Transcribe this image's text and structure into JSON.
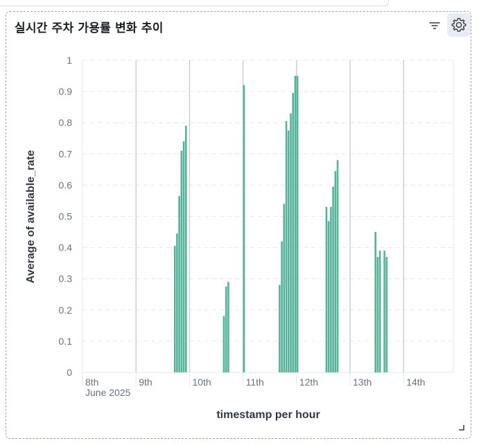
{
  "panel": {
    "title": "실시간 주차 가용률 변화 추이",
    "icons": [
      "filter-icon",
      "gear-icon",
      "resize-handle-icon"
    ]
  },
  "colors": {
    "bar": "#54b399",
    "grid": "#e4e7ec",
    "day_line": "#c5c9d0"
  },
  "chart_data": {
    "type": "bar",
    "title": "",
    "xlabel": "timestamp per hour",
    "ylabel": "Average of available_rate",
    "ylim": [
      0,
      1
    ],
    "yticks": [
      "0",
      "0.1",
      "0.2",
      "0.3",
      "0.4",
      "0.5",
      "0.6",
      "0.7",
      "0.8",
      "0.9",
      "1"
    ],
    "xticks": [
      {
        "label": "8th",
        "sublabel": "June 2025",
        "date": "2025-06-08"
      },
      {
        "label": "9th",
        "date": "2025-06-09"
      },
      {
        "label": "10th",
        "date": "2025-06-10"
      },
      {
        "label": "11th",
        "date": "2025-06-11"
      },
      {
        "label": "12th",
        "date": "2025-06-12"
      },
      {
        "label": "13th",
        "date": "2025-06-13"
      },
      {
        "label": "14th",
        "date": "2025-06-14"
      }
    ],
    "grid": true,
    "series": [
      {
        "values": [
          {
            "x": "2025-06-09 17:00",
            "y": 0.405
          },
          {
            "x": "2025-06-09 18:00",
            "y": 0.445
          },
          {
            "x": "2025-06-09 19:00",
            "y": 0.565
          },
          {
            "x": "2025-06-09 20:00",
            "y": 0.71
          },
          {
            "x": "2025-06-09 21:00",
            "y": 0.74
          },
          {
            "x": "2025-06-09 22:00",
            "y": 0.79
          },
          {
            "x": "2025-06-10 15:00",
            "y": 0.18
          },
          {
            "x": "2025-06-10 16:00",
            "y": 0.275
          },
          {
            "x": "2025-06-10 17:00",
            "y": 0.29
          },
          {
            "x": "2025-06-11 00:00",
            "y": 0.92
          },
          {
            "x": "2025-06-11 16:00",
            "y": 0.28
          },
          {
            "x": "2025-06-11 17:00",
            "y": 0.42
          },
          {
            "x": "2025-06-11 18:00",
            "y": 0.54
          },
          {
            "x": "2025-06-11 19:00",
            "y": 0.805
          },
          {
            "x": "2025-06-11 20:00",
            "y": 0.775
          },
          {
            "x": "2025-06-11 21:00",
            "y": 0.83
          },
          {
            "x": "2025-06-11 22:00",
            "y": 0.895
          },
          {
            "x": "2025-06-11 23:00",
            "y": 0.95
          },
          {
            "x": "2025-06-12 00:00",
            "y": 0.95
          },
          {
            "x": "2025-06-12 13:00",
            "y": 0.53
          },
          {
            "x": "2025-06-12 14:00",
            "y": 0.485
          },
          {
            "x": "2025-06-12 15:00",
            "y": 0.53
          },
          {
            "x": "2025-06-12 16:00",
            "y": 0.595
          },
          {
            "x": "2025-06-12 17:00",
            "y": 0.645
          },
          {
            "x": "2025-06-12 18:00",
            "y": 0.68
          },
          {
            "x": "2025-06-13 11:00",
            "y": 0.45
          },
          {
            "x": "2025-06-13 12:00",
            "y": 0.37
          },
          {
            "x": "2025-06-13 13:00",
            "y": 0.39
          },
          {
            "x": "2025-06-13 15:00",
            "y": 0.39
          },
          {
            "x": "2025-06-13 16:00",
            "y": 0.37
          }
        ]
      }
    ]
  }
}
